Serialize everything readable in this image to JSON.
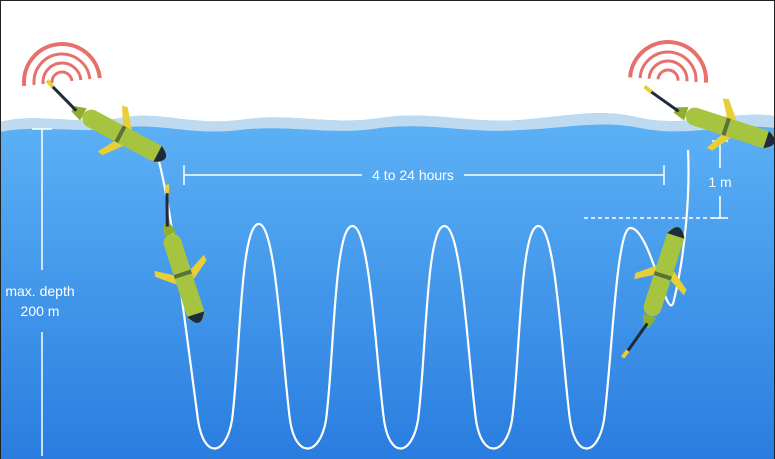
{
  "labels": {
    "duration": "4 to 24 hours",
    "surface_offset": "1 m",
    "max_depth_line1": "max. depth",
    "max_depth_line2": "200 m"
  },
  "colors": {
    "sky": "#ffffff",
    "water_top": "#4aa3f2",
    "water_bottom": "#2b7fe0",
    "wave_crest": "#d8e6ef",
    "signal": "#e8706a",
    "glider_body": "#a6c43f",
    "glider_fin": "#e7cf35",
    "glider_nose": "#1f2b3a",
    "path": "#ffffff"
  },
  "icons": [
    "signal-waves-icon",
    "glider-icon"
  ]
}
